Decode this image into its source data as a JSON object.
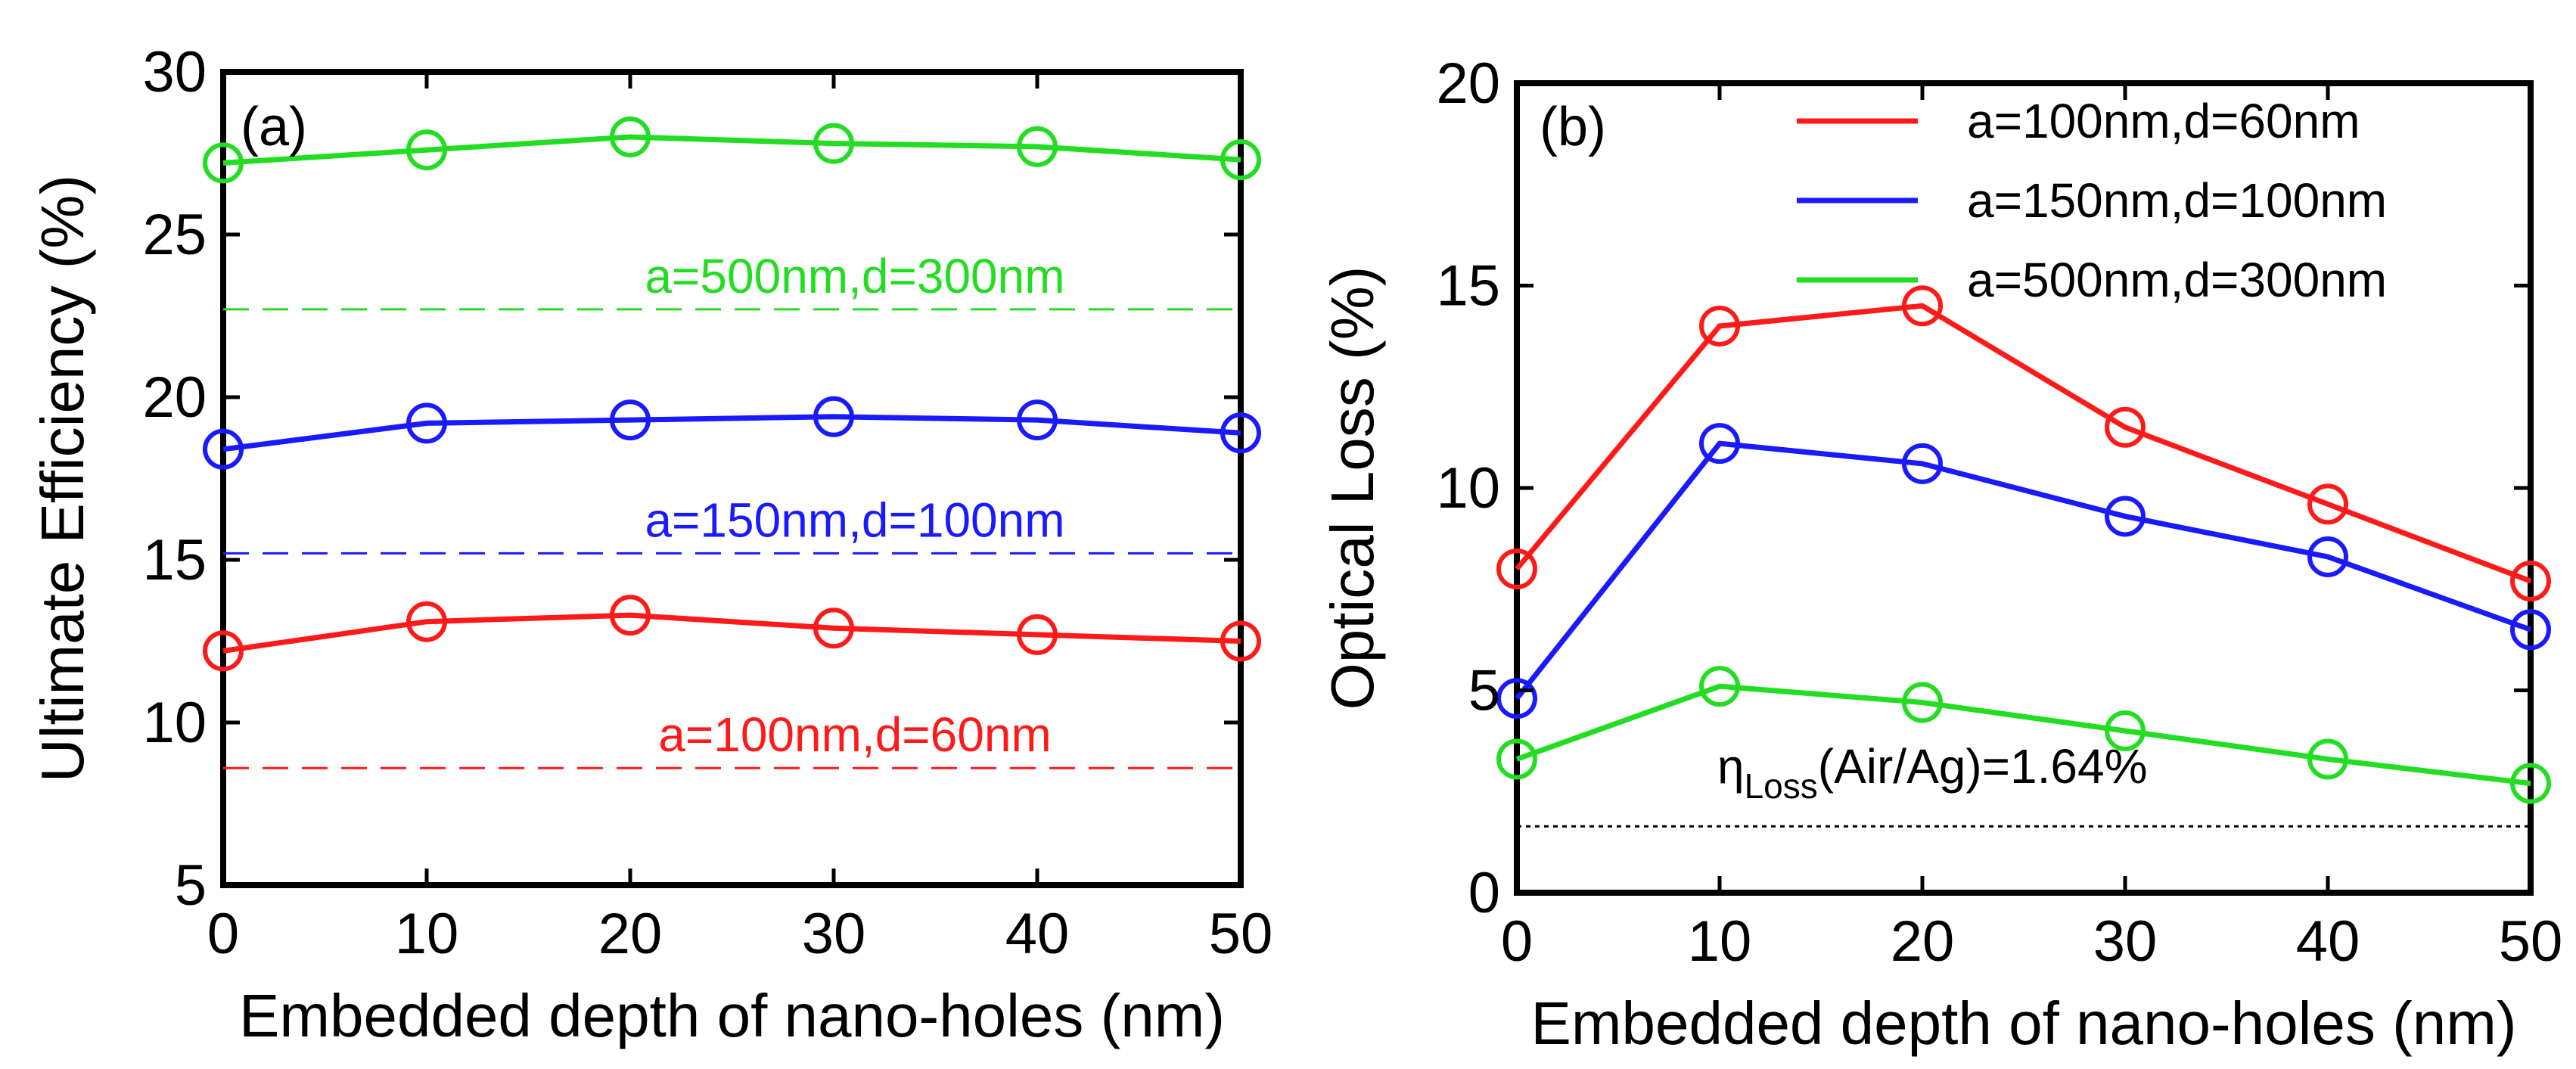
{
  "chart_data": [
    {
      "type": "line",
      "panel_label": "(a)",
      "xlabel": "Embedded depth of nano-holes (nm)",
      "ylabel": "Ultimate Efficiency (%)",
      "x": [
        0,
        10,
        20,
        30,
        40,
        50
      ],
      "xlim": [
        0,
        50
      ],
      "ylim": [
        5,
        30
      ],
      "xticks": [
        "0",
        "10",
        "20",
        "30",
        "40",
        "50"
      ],
      "yticks": [
        "5",
        "10",
        "15",
        "20",
        "25",
        "30"
      ],
      "xtick_values": [
        0,
        10,
        20,
        30,
        40,
        50
      ],
      "ytick_values": [
        5,
        10,
        15,
        20,
        25,
        30
      ],
      "series": [
        {
          "name": "a=500nm,d=300nm",
          "color": "#22dd22",
          "values": [
            27.2,
            27.6,
            28.0,
            27.8,
            27.7,
            27.3
          ]
        },
        {
          "name": "a=150nm,d=100nm",
          "color": "#1a1aff",
          "values": [
            18.4,
            19.2,
            19.3,
            19.4,
            19.3,
            18.9
          ]
        },
        {
          "name": "a=100nm,d=60nm",
          "color": "#ff1a1a",
          "values": [
            12.2,
            13.1,
            13.3,
            12.9,
            12.7,
            12.5
          ]
        }
      ],
      "reference_lines": [
        {
          "label": "a=500nm,d=300nm",
          "color": "#22dd22",
          "y": 22.7
        },
        {
          "label": "a=150nm,d=100nm",
          "color": "#1a1aff",
          "y": 15.2
        },
        {
          "label": "a=100nm,d=60nm",
          "color": "#ff1a1a",
          "y": 8.6
        }
      ]
    },
    {
      "type": "line",
      "panel_label": "(b)",
      "xlabel": "Embedded depth of nano-holes (nm)",
      "ylabel": "Optical Loss (%)",
      "x": [
        0,
        10,
        20,
        30,
        40,
        50
      ],
      "xlim": [
        0,
        50
      ],
      "ylim": [
        0,
        20
      ],
      "xticks": [
        "0",
        "10",
        "20",
        "30",
        "40",
        "50"
      ],
      "yticks": [
        "0",
        "5",
        "10",
        "15",
        "20"
      ],
      "xtick_values": [
        0,
        10,
        20,
        30,
        40,
        50
      ],
      "ytick_values": [
        0,
        5,
        10,
        15,
        20
      ],
      "legend": [
        "a=100nm,d=60nm",
        "a=150nm,d=100nm",
        "a=500nm,d=300nm"
      ],
      "legend_position": "top-right",
      "series": [
        {
          "name": "a=100nm,d=60nm",
          "color": "#ff1a1a",
          "values": [
            8.0,
            14.0,
            14.5,
            11.5,
            9.6,
            7.7
          ]
        },
        {
          "name": "a=150nm,d=100nm",
          "color": "#1a1aff",
          "values": [
            4.8,
            11.1,
            10.6,
            9.3,
            8.3,
            6.5
          ]
        },
        {
          "name": "a=500nm,d=300nm",
          "color": "#22dd22",
          "values": [
            3.3,
            5.1,
            4.7,
            4.0,
            3.3,
            2.7
          ]
        }
      ],
      "reference_lines": [
        {
          "color": "#000000",
          "y": 1.64,
          "dotted": true
        }
      ],
      "annotation": {
        "eta": "η",
        "subscript": "Loss",
        "text": "(Air/Ag)=1.64%"
      }
    }
  ]
}
